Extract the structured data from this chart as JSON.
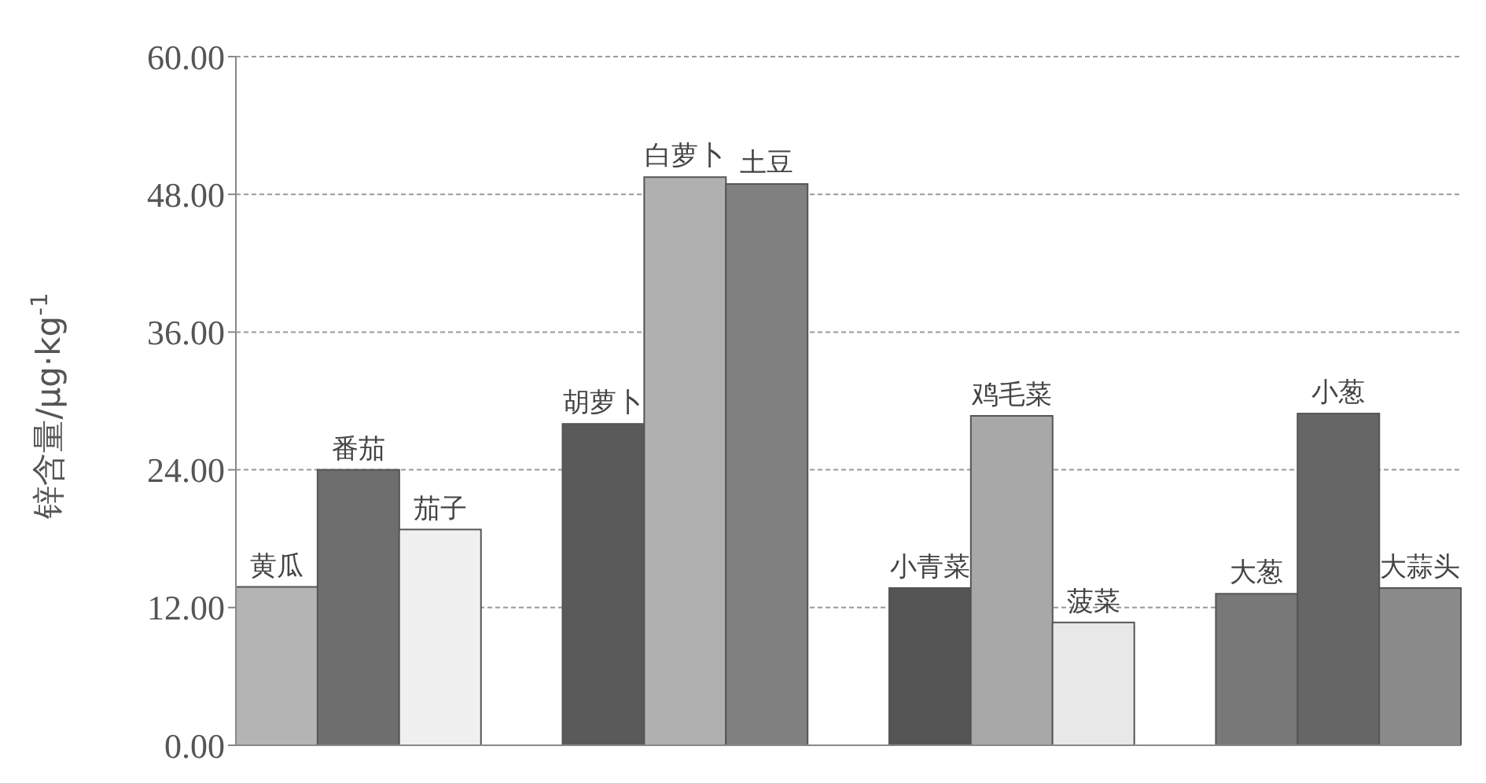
{
  "chart_data": {
    "type": "bar",
    "ylabel": "锌含量/μg·kg$^{-1}$",
    "categories": [
      "黄瓜",
      "番茄",
      "茄子",
      null,
      "胡萝卜",
      "白萝卜",
      "土豆",
      null,
      "小青菜",
      "鸡毛菜",
      "菠菜",
      null,
      "大葱",
      "小葱",
      "大蒜头"
    ],
    "values": [
      13.8,
      24.0,
      18.8,
      null,
      28.0,
      49.5,
      48.9,
      null,
      13.7,
      28.7,
      10.7,
      null,
      13.2,
      28.9,
      13.7
    ],
    "colors": [
      "#b4b4b4",
      "#6e6e6e",
      "#f0f0f0",
      null,
      "#5a5a5a",
      "#b0b0b0",
      "#808080",
      null,
      "#555555",
      "#a8a8a8",
      "#e8e8e8",
      null,
      "#787878",
      "#666666",
      "#8a8a8a"
    ],
    "ylim": [
      0,
      60
    ],
    "yticks": [
      {
        "value": 0,
        "label": "0.00"
      },
      {
        "value": 12,
        "label": "12.00"
      },
      {
        "value": 24,
        "label": "24.00"
      },
      {
        "value": 36,
        "label": "36.00"
      },
      {
        "value": 48,
        "label": "48.00"
      },
      {
        "value": 60,
        "label": "60.00"
      }
    ],
    "grid": "y",
    "tick_labels": "y"
  }
}
